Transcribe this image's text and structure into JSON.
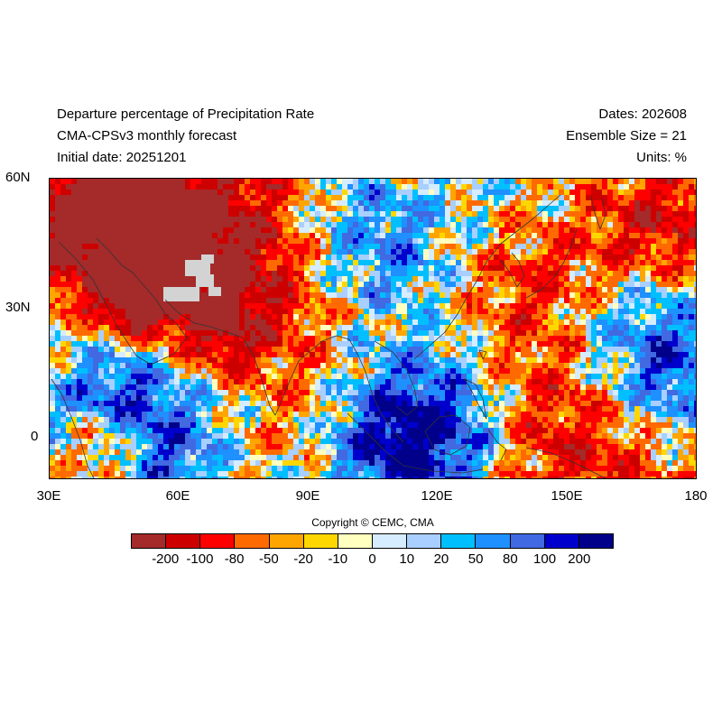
{
  "header": {
    "title_line1": "Departure percentage of Precipitation Rate",
    "title_line2": "CMA-CPSv3 monthly forecast",
    "title_line3": "Initial date: 20251201",
    "dates": "Dates: 202608",
    "ensemble": "Ensemble Size = 21",
    "units": "Units: %"
  },
  "axes": {
    "lat_labels": [
      "60N",
      "30N",
      "0"
    ],
    "lon_labels": [
      "30E",
      "60E",
      "90E",
      "120E",
      "150E",
      "180"
    ]
  },
  "copyright": "Copyright © CEMC, CMA",
  "colorbar": {
    "colors": [
      "#a52a2a",
      "#cd0000",
      "#ff0000",
      "#ff6a00",
      "#ffa500",
      "#ffd700",
      "#ffffc0",
      "#d6ecff",
      "#a8cfff",
      "#00bfff",
      "#1e90ff",
      "#4169e1",
      "#0000cd",
      "#00008b"
    ],
    "labels": [
      "-200",
      "-100",
      "-80",
      "-50",
      "-20",
      "-10",
      "0",
      "10",
      "20",
      "50",
      "80",
      "100",
      "200"
    ]
  },
  "map": {
    "missing_color": "#d3d3d3",
    "coastline_color": "#333333"
  }
}
